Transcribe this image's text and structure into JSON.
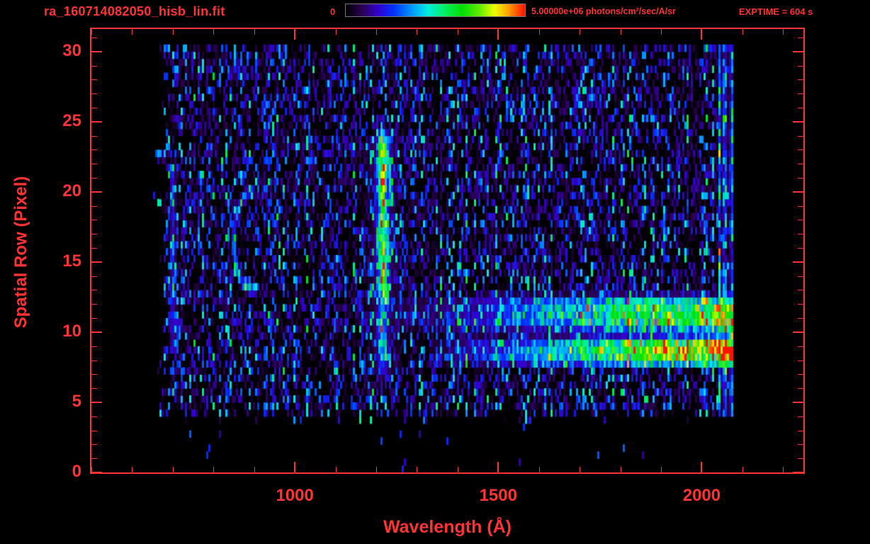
{
  "header": {
    "filename": "ra_160714082050_hisb_lin.fit",
    "colorbar_min": "0",
    "colorbar_max": "5.00000e+06 photons/cm²/sec/A/sr",
    "exptime": "EXPTIME = 604 s"
  },
  "colors": {
    "background": "#000000",
    "accent": "#ff3333",
    "colorbar_border": "#777777"
  },
  "chart_data": {
    "type": "heatmap",
    "title": "ra_160714082050_hisb_lin.fit",
    "xlabel": "Wavelength (Å)",
    "ylabel": "Spatial Row (Pixel)",
    "xlim": [
      500,
      2250
    ],
    "ylim": [
      0,
      31.6
    ],
    "x_ticks": [
      1000,
      1500,
      2000
    ],
    "x_minor_step": 100,
    "y_ticks": [
      0,
      5,
      10,
      15,
      20,
      25,
      30
    ],
    "y_minor_step": 1,
    "colorbar": {
      "min": 0,
      "max": 5000000,
      "units": "photons/cm²/sec/A/sr",
      "scale": "lin"
    },
    "exposure_time_s": 604,
    "seed": 1234,
    "colormap": [
      [
        0,
        "#000000"
      ],
      [
        0.09,
        "#2a0050"
      ],
      [
        0.18,
        "#3300cc"
      ],
      [
        0.27,
        "#0033ff"
      ],
      [
        0.37,
        "#0099ff"
      ],
      [
        0.46,
        "#00eedd"
      ],
      [
        0.55,
        "#00ee66"
      ],
      [
        0.65,
        "#00dd00"
      ],
      [
        0.75,
        "#66ee00"
      ],
      [
        0.83,
        "#eeff00"
      ],
      [
        0.9,
        "#ffaa00"
      ],
      [
        1,
        "#ff1100"
      ]
    ],
    "data_extent": {
      "wavelength_A": [
        655,
        2070
      ],
      "spatial_rows": [
        3.6,
        30.3
      ]
    },
    "features": [
      {
        "id": "detector-background-noise",
        "type": "noise",
        "wavelength_A": [
          655,
          2070
        ],
        "rows": [
          3.6,
          30.3
        ],
        "level": 0.42
      },
      {
        "id": "lyman-alpha-emission-line",
        "type": "vertical_line",
        "wavelength_center_A": 1216,
        "sigma_A": 9,
        "wing_sigma_A": 26,
        "wing_level": 0.16,
        "rows": [
          6.6,
          24.2
        ],
        "row_profile": [
          [
            6.6,
            0.1
          ],
          [
            8,
            0.3
          ],
          [
            10,
            0.32
          ],
          [
            12,
            0.36
          ],
          [
            13.5,
            0.46
          ],
          [
            15,
            0.54
          ],
          [
            16.5,
            0.5
          ],
          [
            18,
            0.42
          ],
          [
            19.5,
            0.5
          ],
          [
            21,
            0.6
          ],
          [
            23,
            0.58
          ],
          [
            23.8,
            0.38
          ],
          [
            24.2,
            0.08
          ]
        ]
      },
      {
        "id": "continuum-band-upper",
        "type": "horizontal_band",
        "row_center": 11.1,
        "row_sigma": 1.0,
        "ramp": [
          [
            1240,
            0.04
          ],
          [
            1400,
            0.12
          ],
          [
            1600,
            0.3
          ],
          [
            1800,
            0.48
          ],
          [
            1950,
            0.56
          ],
          [
            2070,
            0.6
          ]
        ]
      },
      {
        "id": "continuum-band-lower",
        "type": "horizontal_band",
        "row_center": 8.4,
        "row_sigma": 0.85,
        "ramp": [
          [
            1330,
            0.04
          ],
          [
            1500,
            0.18
          ],
          [
            1700,
            0.42
          ],
          [
            1850,
            0.6
          ],
          [
            1950,
            0.68
          ],
          [
            2070,
            0.72
          ]
        ]
      },
      {
        "id": "arc-feature",
        "type": "arc",
        "wavelength_center_A": 895,
        "row_center": 16.3,
        "rx_A": 45,
        "ry_rows": 3.5,
        "max_wavelength_A": 900,
        "intensity": 0.3
      },
      {
        "id": "right-edge-hot-column",
        "type": "noise_band",
        "wavelength_A": [
          2040,
          2076
        ],
        "rows": [
          3.6,
          30.3
        ],
        "level": 0.5
      },
      {
        "id": "faint-line-700",
        "type": "vertical_line",
        "wavelength_center_A": 700,
        "sigma_A": 5,
        "rows": [
          8,
          22
        ],
        "row_profile": [
          [
            8,
            0.18
          ],
          [
            22,
            0.18
          ]
        ]
      }
    ]
  }
}
